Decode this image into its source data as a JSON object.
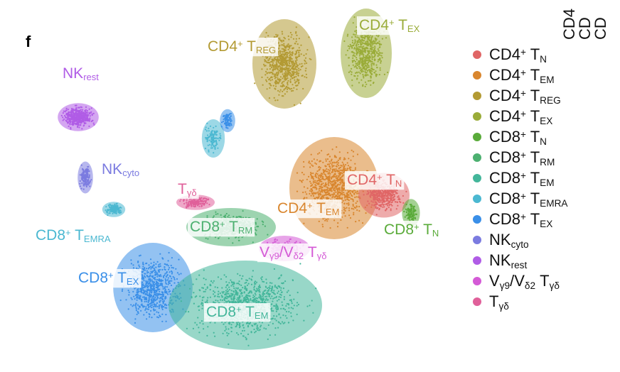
{
  "panel_label": "f",
  "cropped_header": [
    "CD4",
    "CD",
    "CD"
  ],
  "legend": [
    {
      "color": "#e06666",
      "parts": [
        {
          "text": "CD4"
        },
        {
          "text": "+",
          "style": "sup"
        },
        {
          "text": " T"
        },
        {
          "text": "N",
          "style": "sub"
        }
      ]
    },
    {
      "color": "#d9862e",
      "parts": [
        {
          "text": "CD4"
        },
        {
          "text": "+",
          "style": "sup"
        },
        {
          "text": " T"
        },
        {
          "text": "EM",
          "style": "sub"
        }
      ]
    },
    {
      "color": "#b39a33",
      "parts": [
        {
          "text": "CD4"
        },
        {
          "text": "+",
          "style": "sup"
        },
        {
          "text": " T"
        },
        {
          "text": "REG",
          "style": "sub"
        }
      ]
    },
    {
      "color": "#9aac39",
      "parts": [
        {
          "text": "CD4"
        },
        {
          "text": "+",
          "style": "sup"
        },
        {
          "text": " T"
        },
        {
          "text": "EX",
          "style": "sub"
        }
      ]
    },
    {
      "color": "#5aab3a",
      "parts": [
        {
          "text": "CD8"
        },
        {
          "text": "+",
          "style": "sup"
        },
        {
          "text": " T"
        },
        {
          "text": "N",
          "style": "sub"
        }
      ]
    },
    {
      "color": "#4cb070",
      "parts": [
        {
          "text": "CD8"
        },
        {
          "text": "+",
          "style": "sup"
        },
        {
          "text": " T"
        },
        {
          "text": "RM",
          "style": "sub"
        }
      ]
    },
    {
      "color": "#43b69a",
      "parts": [
        {
          "text": "CD8"
        },
        {
          "text": "+",
          "style": "sup"
        },
        {
          "text": " T"
        },
        {
          "text": "EM",
          "style": "sub"
        }
      ]
    },
    {
      "color": "#4bb8d1",
      "parts": [
        {
          "text": "CD8"
        },
        {
          "text": "+",
          "style": "sup"
        },
        {
          "text": " T"
        },
        {
          "text": "EMRA",
          "style": "sub"
        }
      ]
    },
    {
      "color": "#3a8fe8",
      "parts": [
        {
          "text": "CD8"
        },
        {
          "text": "+",
          "style": "sup"
        },
        {
          "text": " T"
        },
        {
          "text": "EX",
          "style": "sub"
        }
      ]
    },
    {
      "color": "#7b7be0",
      "parts": [
        {
          "text": "NK"
        },
        {
          "text": "cyto",
          "style": "sub"
        }
      ]
    },
    {
      "color": "#b05ce6",
      "parts": [
        {
          "text": "NK"
        },
        {
          "text": "rest",
          "style": "sub"
        }
      ]
    },
    {
      "color": "#d45ad6",
      "parts": [
        {
          "text": "V"
        },
        {
          "text": "γ9",
          "style": "sub"
        },
        {
          "text": "/V"
        },
        {
          "text": "δ2",
          "style": "sub"
        },
        {
          "text": " T"
        },
        {
          "text": "γδ",
          "style": "sub"
        }
      ]
    },
    {
      "color": "#e0609a",
      "parts": [
        {
          "text": "T"
        },
        {
          "text": "γδ",
          "style": "sub"
        }
      ]
    }
  ],
  "cluster_labels": [
    {
      "color": "#b39a33",
      "boxed": true,
      "parts": [
        {
          "text": "CD4"
        },
        {
          "text": "+",
          "style": "sup"
        },
        {
          "text": " T"
        },
        {
          "text": "REG",
          "style": "sub"
        }
      ]
    },
    {
      "color": "#9aac39",
      "boxed": true,
      "parts": [
        {
          "text": "CD4"
        },
        {
          "text": "+",
          "style": "sup"
        },
        {
          "text": " T"
        },
        {
          "text": "EX",
          "style": "sub"
        }
      ]
    },
    {
      "color": "#b05ce6",
      "boxed": false,
      "parts": [
        {
          "text": "NK"
        },
        {
          "text": "rest",
          "style": "sub"
        }
      ]
    },
    {
      "color": "#7b7be0",
      "boxed": false,
      "parts": [
        {
          "text": "NK"
        },
        {
          "text": "cyto",
          "style": "sub"
        }
      ]
    },
    {
      "color": "#e0609a",
      "boxed": true,
      "parts": [
        {
          "text": "T"
        },
        {
          "text": "γδ",
          "style": "sub"
        }
      ]
    },
    {
      "color": "#e06666",
      "boxed": true,
      "parts": [
        {
          "text": "CD4"
        },
        {
          "text": "+",
          "style": "sup"
        },
        {
          "text": " T"
        },
        {
          "text": "N",
          "style": "sub"
        }
      ]
    },
    {
      "color": "#d9862e",
      "boxed": true,
      "parts": [
        {
          "text": "CD4"
        },
        {
          "text": "+",
          "style": "sup"
        },
        {
          "text": " T"
        },
        {
          "text": "EM",
          "style": "sub"
        }
      ]
    },
    {
      "color": "#4bb8d1",
      "boxed": false,
      "parts": [
        {
          "text": "CD8"
        },
        {
          "text": "+",
          "style": "sup"
        },
        {
          "text": " T"
        },
        {
          "text": "EMRA",
          "style": "sub"
        }
      ]
    },
    {
      "color": "#4cb070",
      "boxed": true,
      "parts": [
        {
          "text": "CD8"
        },
        {
          "text": "+",
          "style": "sup"
        },
        {
          "text": " T"
        },
        {
          "text": "RM",
          "style": "sub"
        }
      ]
    },
    {
      "color": "#5aab3a",
      "boxed": true,
      "parts": [
        {
          "text": "CD8"
        },
        {
          "text": "+",
          "style": "sup"
        },
        {
          "text": " T"
        },
        {
          "text": "N",
          "style": "sub"
        }
      ]
    },
    {
      "color": "#d45ad6",
      "boxed": true,
      "parts": [
        {
          "text": "V"
        },
        {
          "text": "γ9",
          "style": "sub"
        },
        {
          "text": "/V"
        },
        {
          "text": "δ2",
          "style": "sub"
        },
        {
          "text": " T"
        },
        {
          "text": "γδ",
          "style": "sub"
        }
      ]
    },
    {
      "color": "#3a8fe8",
      "boxed": true,
      "parts": [
        {
          "text": "CD8"
        },
        {
          "text": "+",
          "style": "sup"
        },
        {
          "text": " T"
        },
        {
          "text": "EX",
          "style": "sub"
        }
      ]
    },
    {
      "color": "#43b69a",
      "boxed": true,
      "parts": [
        {
          "text": "CD8"
        },
        {
          "text": "+",
          "style": "sup"
        },
        {
          "text": " T"
        },
        {
          "text": "EM",
          "style": "sub"
        }
      ]
    }
  ]
}
